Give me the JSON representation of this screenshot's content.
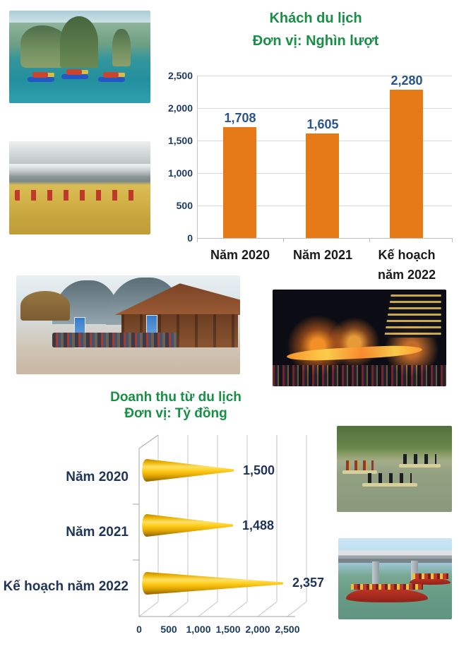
{
  "page": {
    "background": "#ffffff"
  },
  "colors": {
    "title_green": "#178f44",
    "bar_orange": "#e67a17",
    "value_blue": "#2a5490",
    "tick_navy": "#1c3a5e",
    "cone_label_navy": "#1f3459",
    "cone_gold": "#ffc800"
  },
  "chart_data": [
    {
      "type": "bar",
      "title": "Khách du lịch",
      "unit_label": "Đơn vị: Nghìn lượt",
      "categories": [
        "Năm 2020",
        "Năm 2021",
        "Kế hoạch năm 2022"
      ],
      "categories_display": [
        [
          "Năm 2020"
        ],
        [
          "Năm 2021"
        ],
        [
          "Kế hoạch",
          "năm 2022"
        ]
      ],
      "values": [
        1708,
        1605,
        2280
      ],
      "value_labels": [
        "1,708",
        "1,605",
        "2,280"
      ],
      "ylim": [
        0,
        2500
      ],
      "ytick_interval": 500,
      "ytick_labels": [
        "2,500",
        "2,000",
        "1,500",
        "1,000",
        "500",
        "0"
      ],
      "grid": true,
      "legend": "none",
      "bar_color": "#e67a17"
    },
    {
      "type": "bar",
      "subtype": "horizontal-3d-cone",
      "title": "Doanh thu từ du lịch",
      "unit_label": "Đơn vị: Tỷ đồng",
      "categories": [
        "Năm 2020",
        "Năm 2021",
        "Kế hoạch năm 2022"
      ],
      "values": [
        1500,
        1488,
        2357
      ],
      "value_labels": [
        "1,500",
        "1,488",
        "2,357"
      ],
      "xlim": [
        0,
        2500
      ],
      "xtick_interval": 500,
      "xtick_labels": [
        "0",
        "500",
        "1,000",
        "1,500",
        "2,000",
        "2,500"
      ],
      "grid": true,
      "legend": "none",
      "bar_color": "#ffc800"
    }
  ]
}
